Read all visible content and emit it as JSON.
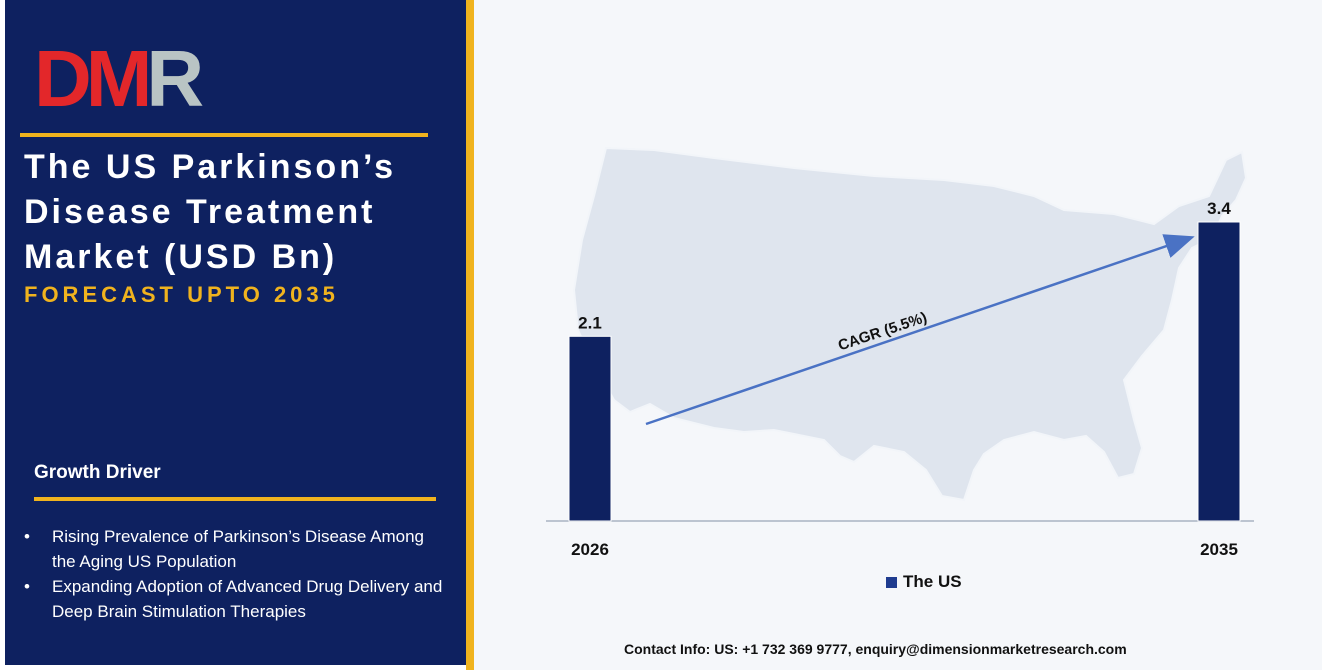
{
  "logo": {
    "d": "D",
    "m": "M",
    "r": "R"
  },
  "title": "The US Parkinson’s Disease Treatment Market (USD Bn)",
  "subtitle": "FORECAST UPTO 2035",
  "growth_driver": {
    "heading": "Growth Driver",
    "items": [
      "Rising Prevalence of Parkinson’s Disease Among the Aging US Population",
      "Expanding Adoption of Advanced Drug Delivery and Deep Brain Stimulation Therapies"
    ]
  },
  "cagr_label": "CAGR (5.5%)",
  "contact": "Contact Info: US: +1 732 369 9777, enquiry@dimensionmarketresearch.com",
  "colors": {
    "navy": "#0e2160",
    "gold": "#f0b31e",
    "bar": "#0e2160",
    "arrow": "#4a72c4"
  },
  "chart_data": {
    "type": "bar",
    "categories": [
      "2026",
      "2035"
    ],
    "series": [
      {
        "name": "The US",
        "values": [
          2.1,
          3.4
        ]
      }
    ],
    "ylim": [
      0,
      3.4
    ]
  }
}
